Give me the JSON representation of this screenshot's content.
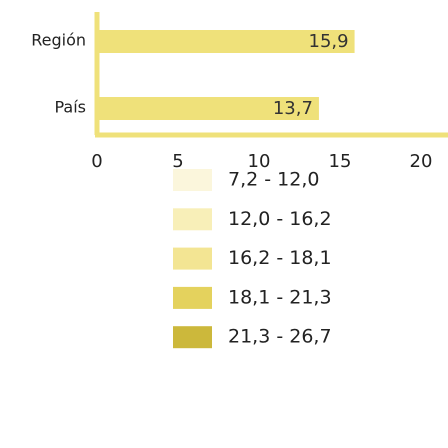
{
  "chart_data": {
    "type": "bar",
    "orientation": "horizontal",
    "categories": [
      "Región",
      "País"
    ],
    "values": [
      15.9,
      13.7
    ],
    "value_labels": [
      "15,9",
      "13,7"
    ],
    "color": "#efe17a",
    "xlim": [
      0,
      20
    ],
    "xticks": [
      0,
      5,
      10,
      15,
      20
    ],
    "legend": [
      {
        "label": "7,2 - 12,0",
        "color": "#fbf6dc"
      },
      {
        "label": "12,0 - 16,2",
        "color": "#f8efb8"
      },
      {
        "label": "16,2 - 18,1",
        "color": "#f3e593"
      },
      {
        "label": "18,1 - 21,3",
        "color": "#e4d25d"
      },
      {
        "label": "21,3 - 26,7",
        "color": "#ccb83b"
      }
    ]
  }
}
